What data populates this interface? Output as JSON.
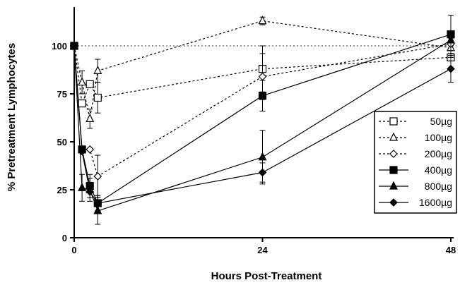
{
  "chart_data": {
    "type": "line",
    "title": "",
    "xlabel": "Hours Post-Treatment",
    "ylabel": "% Pretreatment Lymphocytes",
    "xlim": [
      0,
      48
    ],
    "ylim": [
      0,
      120
    ],
    "xticks": [
      0,
      24,
      48
    ],
    "yticks": [
      0,
      25,
      50,
      75,
      100
    ],
    "reference_line": 100,
    "legend_position": "right",
    "series": [
      {
        "name": "50µg",
        "marker": "square-open",
        "dash": "dashed",
        "x": [
          0,
          1,
          2,
          3,
          24,
          48
        ],
        "y": [
          100,
          70,
          80,
          73,
          88,
          94
        ],
        "err": [
          0,
          0,
          0,
          8,
          12,
          0
        ]
      },
      {
        "name": "100µg",
        "marker": "triangle-open",
        "dash": "dashed",
        "x": [
          0,
          1,
          2,
          3,
          24,
          48
        ],
        "y": [
          100,
          81,
          62,
          87,
          113,
          99
        ],
        "err": [
          0,
          6,
          5,
          6,
          2,
          5
        ]
      },
      {
        "name": "200µg",
        "marker": "diamond-open",
        "dash": "dashed",
        "x": [
          0,
          1,
          2,
          3,
          24,
          48
        ],
        "y": [
          100,
          46,
          46,
          32,
          84,
          101
        ],
        "err": [
          0,
          0,
          0,
          11,
          12,
          6
        ]
      },
      {
        "name": "400µg",
        "marker": "square-filled",
        "dash": "solid",
        "x": [
          0,
          1,
          2,
          3,
          24,
          48
        ],
        "y": [
          100,
          46,
          27,
          18,
          74,
          106
        ],
        "err": [
          0,
          0,
          6,
          4,
          8,
          10
        ]
      },
      {
        "name": "800µg",
        "marker": "triangle-filled",
        "dash": "solid",
        "x": [
          0,
          1,
          2,
          3,
          24,
          48
        ],
        "y": [
          100,
          26,
          25,
          14,
          42,
          103
        ],
        "err": [
          0,
          7,
          6,
          7,
          14,
          0
        ]
      },
      {
        "name": "1600µg",
        "marker": "diamond-filled",
        "dash": "solid",
        "x": [
          0,
          1,
          2,
          3,
          24,
          48
        ],
        "y": [
          100,
          45,
          24,
          18,
          34,
          88
        ],
        "err": [
          0,
          0,
          0,
          4,
          5,
          7
        ]
      }
    ]
  }
}
